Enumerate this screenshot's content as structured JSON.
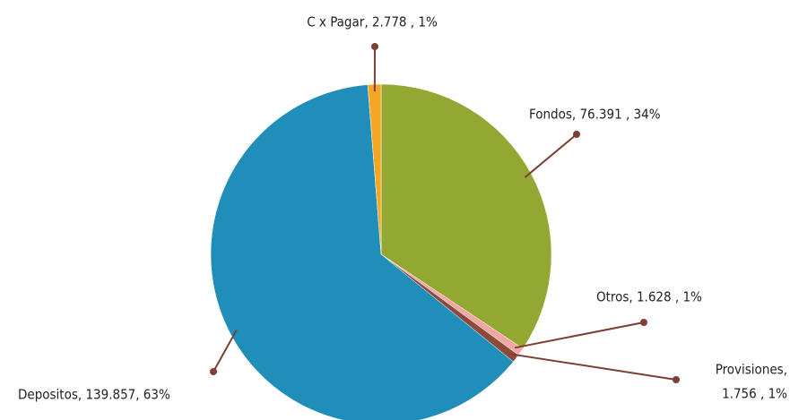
{
  "chart_data": {
    "type": "pie",
    "labels": [
      [
        "Fondos,  76.391 , 34%"
      ],
      [
        "Otros, 1.628 , 1%"
      ],
      [
        "Provisiones,",
        "1.756 , 1%"
      ],
      [
        "Depositos, 139.857, 63%"
      ],
      [
        "C x Pagar, 2.778 , 1%"
      ]
    ],
    "values": [
      76.391,
      1.628,
      1.756,
      139.857,
      2.778
    ],
    "colors": [
      "#93a832",
      "#f4a6a6",
      "#8b4a3a",
      "#1f8fba",
      "#f5a623"
    ]
  }
}
